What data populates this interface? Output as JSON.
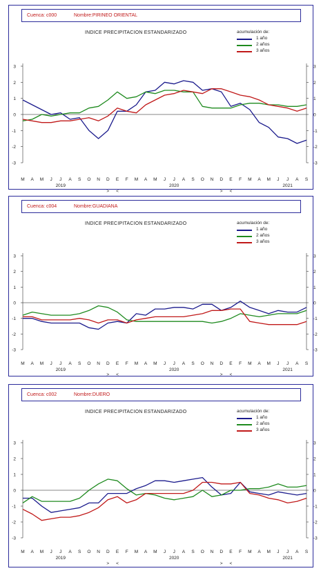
{
  "legend_title": "acumulación de:",
  "x_months": [
    "M",
    "A",
    "M",
    "J",
    "J",
    "A",
    "S",
    "O",
    "N",
    "D",
    "E",
    "F",
    "M",
    "A",
    "M",
    "J",
    "J",
    "A",
    "S",
    "O",
    "N",
    "D",
    "E",
    "F",
    "M",
    "A",
    "M",
    "J",
    "J",
    "A",
    "S"
  ],
  "x_years": [
    "2019",
    "2020",
    "2021"
  ],
  "period_marks": [
    ">",
    "<",
    ">",
    "<"
  ],
  "y_ticks": [
    "3",
    "2",
    "1",
    "0",
    "-1",
    "-2",
    "-3"
  ],
  "colors": {
    "1 año": "#1a1a8c",
    "2 años": "#1e8a1e",
    "3 años": "#c01818",
    "frame": "#2a2a9a"
  },
  "chart_data": [
    {
      "type": "line",
      "basin_label": "Cuenca: c000",
      "basin_name": "Nombre:PIRINEO ORIENTAL",
      "title": "INDICE  PRECIPITACION ESTANDARIZADO",
      "xlabel": "",
      "ylabel": "",
      "ylim": [
        -3,
        3
      ],
      "categories": [
        "Mar 2019",
        "Apr 2019",
        "May 2019",
        "Jun 2019",
        "Jul 2019",
        "Aug 2019",
        "Sep 2019",
        "Oct 2019",
        "Nov 2019",
        "Dec 2019",
        "Jan 2020",
        "Feb 2020",
        "Mar 2020",
        "Apr 2020",
        "May 2020",
        "Jun 2020",
        "Jul 2020",
        "Aug 2020",
        "Sep 2020",
        "Oct 2020",
        "Nov 2020",
        "Dec 2020",
        "Jan 2021",
        "Feb 2021",
        "Mar 2021",
        "Apr 2021",
        "May 2021",
        "Jun 2021",
        "Jul 2021",
        "Aug 2021",
        "Sep 2021"
      ],
      "legend": "top-right",
      "series": [
        {
          "name": "1 año",
          "values": [
            0.9,
            0.6,
            0.3,
            0.0,
            0.1,
            -0.3,
            -0.2,
            -1.0,
            -1.5,
            -1.0,
            0.2,
            0.2,
            0.6,
            1.4,
            1.5,
            2.0,
            1.9,
            2.1,
            2.0,
            1.5,
            1.6,
            1.4,
            0.5,
            0.7,
            0.3,
            -0.5,
            -0.8,
            -1.4,
            -1.5,
            -1.8,
            -1.6
          ]
        },
        {
          "name": "2 años",
          "values": [
            -0.4,
            -0.3,
            0.0,
            -0.1,
            0.0,
            0.1,
            0.1,
            0.4,
            0.5,
            0.9,
            1.4,
            1.0,
            1.1,
            1.4,
            1.3,
            1.5,
            1.5,
            1.4,
            1.4,
            0.5,
            0.4,
            0.4,
            0.4,
            0.6,
            0.7,
            0.7,
            0.6,
            0.6,
            0.5,
            0.5,
            0.6
          ]
        },
        {
          "name": "3 años",
          "values": [
            -0.3,
            -0.4,
            -0.5,
            -0.5,
            -0.4,
            -0.4,
            -0.3,
            -0.2,
            -0.4,
            -0.1,
            0.4,
            0.2,
            0.1,
            0.6,
            0.9,
            1.2,
            1.3,
            1.5,
            1.4,
            1.3,
            1.6,
            1.6,
            1.4,
            1.2,
            1.1,
            0.9,
            0.6,
            0.5,
            0.4,
            0.2,
            0.4
          ]
        }
      ]
    },
    {
      "type": "line",
      "basin_label": "Cuenca: c004",
      "basin_name": "Nombre:GUADIANA",
      "title": "INDICE  PRECIPITACION ESTANDARIZADO",
      "xlabel": "",
      "ylabel": "",
      "ylim": [
        -3,
        3
      ],
      "categories": [
        "Mar 2019",
        "Apr 2019",
        "May 2019",
        "Jun 2019",
        "Jul 2019",
        "Aug 2019",
        "Sep 2019",
        "Oct 2019",
        "Nov 2019",
        "Dec 2019",
        "Jan 2020",
        "Feb 2020",
        "Mar 2020",
        "Apr 2020",
        "May 2020",
        "Jun 2020",
        "Jul 2020",
        "Aug 2020",
        "Sep 2020",
        "Oct 2020",
        "Nov 2020",
        "Dec 2020",
        "Jan 2021",
        "Feb 2021",
        "Mar 2021",
        "Apr 2021",
        "May 2021",
        "Jun 2021",
        "Jul 2021",
        "Aug 2021",
        "Sep 2021"
      ],
      "legend": "top-right",
      "series": [
        {
          "name": "1 año",
          "values": [
            -1.0,
            -1.0,
            -1.2,
            -1.3,
            -1.3,
            -1.3,
            -1.3,
            -1.6,
            -1.7,
            -1.3,
            -1.2,
            -1.3,
            -0.7,
            -0.8,
            -0.4,
            -0.4,
            -0.3,
            -0.3,
            -0.4,
            -0.1,
            -0.1,
            -0.5,
            -0.3,
            0.1,
            -0.3,
            -0.5,
            -0.7,
            -0.5,
            -0.6,
            -0.6,
            -0.3
          ]
        },
        {
          "name": "2 años",
          "values": [
            -0.8,
            -0.6,
            -0.7,
            -0.8,
            -0.8,
            -0.8,
            -0.7,
            -0.5,
            -0.2,
            -0.3,
            -0.6,
            -1.1,
            -1.2,
            -1.2,
            -1.2,
            -1.2,
            -1.2,
            -1.2,
            -1.2,
            -1.2,
            -1.3,
            -1.2,
            -1.0,
            -0.7,
            -0.8,
            -0.9,
            -0.8,
            -0.7,
            -0.7,
            -0.7,
            -0.5
          ]
        },
        {
          "name": "3 años",
          "values": [
            -0.9,
            -0.9,
            -1.1,
            -1.1,
            -1.1,
            -1.1,
            -1.0,
            -1.1,
            -1.3,
            -1.1,
            -1.1,
            -1.3,
            -1.1,
            -1.0,
            -0.9,
            -0.9,
            -0.9,
            -0.9,
            -0.8,
            -0.7,
            -0.5,
            -0.5,
            -0.4,
            -0.4,
            -1.2,
            -1.3,
            -1.4,
            -1.4,
            -1.4,
            -1.4,
            -1.2
          ]
        }
      ]
    },
    {
      "type": "line",
      "basin_label": "Cuenca: c002",
      "basin_name": "Nombre:DUERO",
      "title": "INDICE  PRECIPITACION ESTANDARIZADO",
      "xlabel": "",
      "ylabel": "",
      "ylim": [
        -3,
        3
      ],
      "categories": [
        "Mar 2019",
        "Apr 2019",
        "May 2019",
        "Jun 2019",
        "Jul 2019",
        "Aug 2019",
        "Sep 2019",
        "Oct 2019",
        "Nov 2019",
        "Dec 2019",
        "Jan 2020",
        "Feb 2020",
        "Mar 2020",
        "Apr 2020",
        "May 2020",
        "Jun 2020",
        "Jul 2020",
        "Aug 2020",
        "Sep 2020",
        "Oct 2020",
        "Nov 2020",
        "Dec 2020",
        "Jan 2021",
        "Feb 2021",
        "Mar 2021",
        "Apr 2021",
        "May 2021",
        "Jun 2021",
        "Jul 2021",
        "Aug 2021",
        "Sep 2021"
      ],
      "legend": "top-right",
      "series": [
        {
          "name": "1 año",
          "values": [
            -0.5,
            -0.5,
            -1.0,
            -1.4,
            -1.3,
            -1.2,
            -1.1,
            -0.8,
            -0.8,
            -0.2,
            -0.2,
            -0.2,
            0.1,
            0.3,
            0.6,
            0.6,
            0.5,
            0.6,
            0.7,
            0.8,
            0.2,
            -0.3,
            -0.2,
            0.5,
            -0.1,
            -0.2,
            -0.3,
            -0.1,
            -0.2,
            -0.3,
            -0.2
          ]
        },
        {
          "name": "2 años",
          "values": [
            -0.8,
            -0.4,
            -0.7,
            -0.7,
            -0.7,
            -0.7,
            -0.5,
            0.0,
            0.4,
            0.7,
            0.6,
            0.1,
            -0.3,
            -0.2,
            -0.3,
            -0.5,
            -0.6,
            -0.5,
            -0.4,
            0.0,
            -0.4,
            -0.3,
            0.0,
            0.0,
            0.1,
            0.1,
            0.2,
            0.4,
            0.2,
            0.2,
            0.3
          ]
        },
        {
          "name": "3 años",
          "values": [
            -1.2,
            -1.5,
            -1.9,
            -1.8,
            -1.7,
            -1.7,
            -1.6,
            -1.4,
            -1.1,
            -0.6,
            -0.4,
            -0.8,
            -0.6,
            -0.2,
            -0.2,
            -0.2,
            -0.2,
            -0.2,
            0.0,
            0.5,
            0.5,
            0.4,
            0.4,
            0.5,
            -0.2,
            -0.3,
            -0.5,
            -0.6,
            -0.8,
            -0.7,
            -0.5
          ]
        }
      ]
    }
  ]
}
